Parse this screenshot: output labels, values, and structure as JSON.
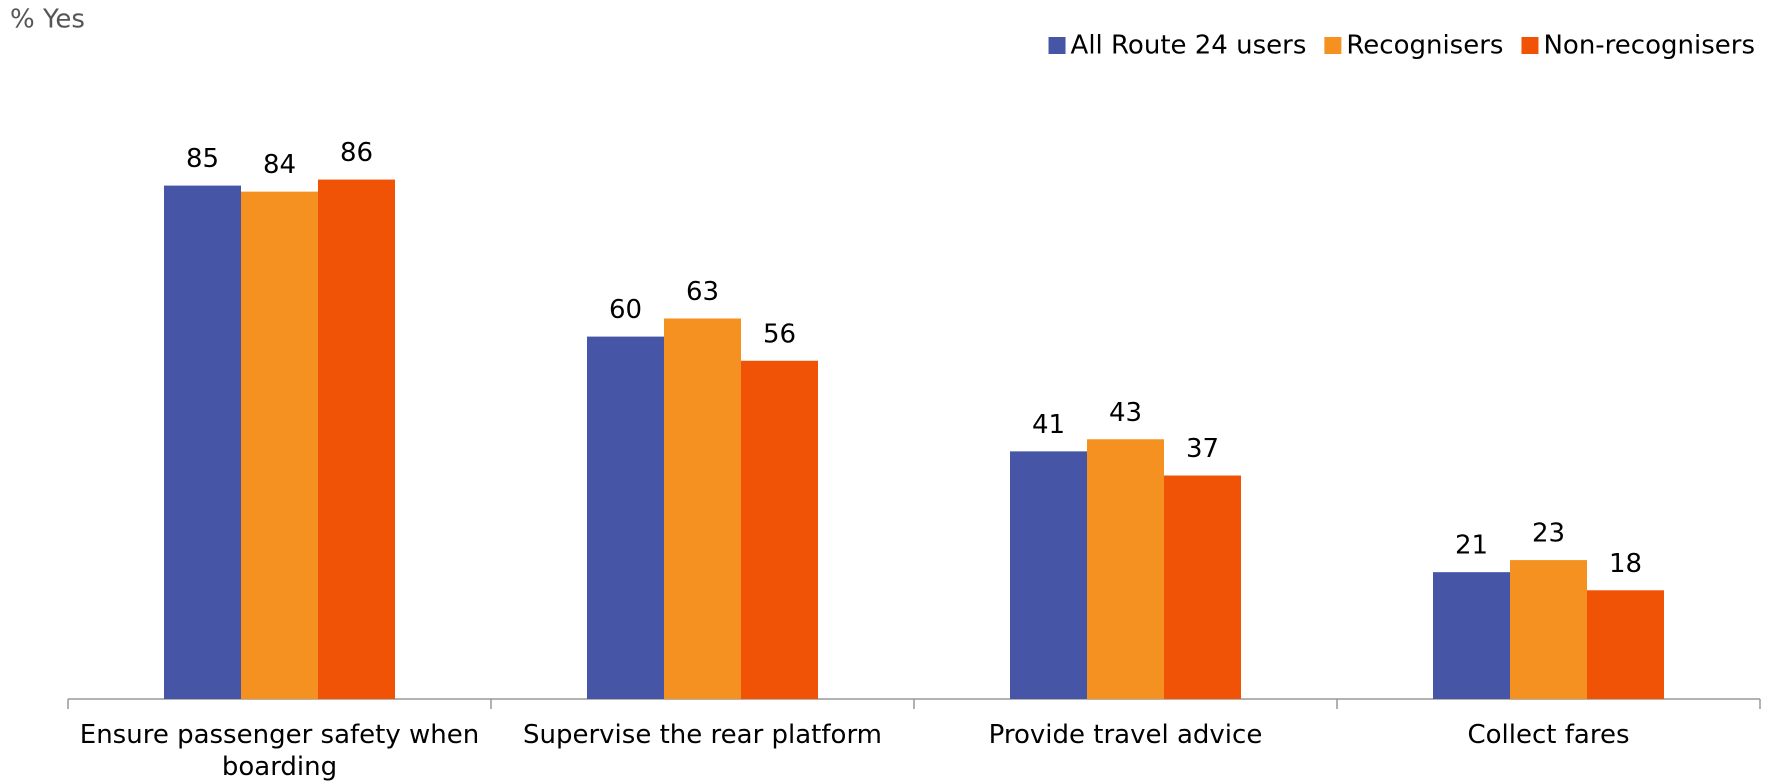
{
  "chart_data": {
    "type": "bar",
    "y_label": "% Yes",
    "categories": [
      "Ensure passenger safety when boarding",
      "Supervise the rear platform",
      "Provide travel advice",
      "Collect fares"
    ],
    "series": [
      {
        "name": "All Route 24 users",
        "color": "#4655a5",
        "values": [
          85,
          60,
          41,
          21
        ]
      },
      {
        "name": "Recognisers",
        "color": "#f59121",
        "values": [
          84,
          63,
          43,
          23
        ]
      },
      {
        "name": "Non-recognisers",
        "color": "#f05305",
        "values": [
          86,
          56,
          37,
          18
        ]
      }
    ],
    "ylim": [
      0,
      100
    ],
    "legend": "top-right"
  }
}
